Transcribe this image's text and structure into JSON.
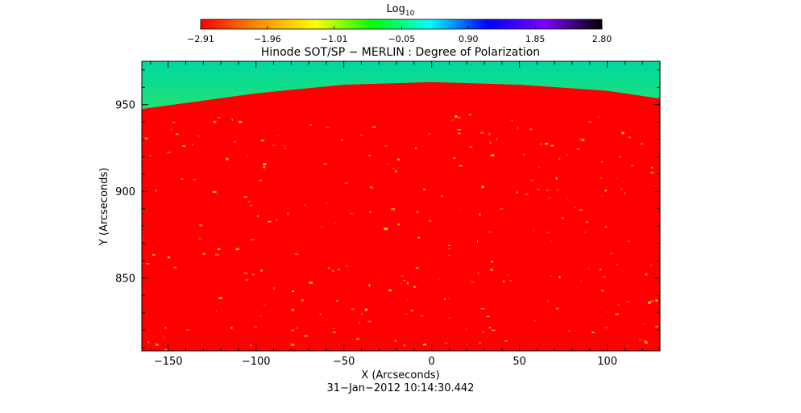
{
  "chart_data": {
    "type": "heatmap",
    "title": "Hinode SOT/SP − MERLIN : Degree of Polarization",
    "xlabel": "X (Arcseconds)",
    "ylabel": "Y (Arcseconds)",
    "timestamp": "31−Jan−2012 10:14:30.442",
    "xlim": [
      -165,
      130
    ],
    "ylim": [
      808,
      975
    ],
    "x_ticks": [
      -150,
      -100,
      -50,
      0,
      50,
      100
    ],
    "x_tick_labels": [
      "−150",
      "−100",
      "−50",
      "0",
      "50",
      "100"
    ],
    "y_ticks": [
      850,
      900,
      950
    ],
    "y_tick_labels": [
      "850",
      "900",
      "950"
    ],
    "colorbar": {
      "label_main": "Log",
      "label_sub": "10",
      "range": [
        -2.91,
        2.8
      ],
      "ticks": [
        -2.91,
        -1.96,
        -1.01,
        -0.05,
        0.9,
        1.85,
        2.8
      ],
      "tick_labels": [
        "−2.91",
        "−1.96",
        "−1.01",
        "−0.05",
        "0.90",
        "1.85",
        "2.80"
      ],
      "colormap": [
        "#ff0000",
        "#ff8c00",
        "#ffff00",
        "#00ff00",
        "#00ffff",
        "#0000ff",
        "#7f00ff",
        "#000000"
      ],
      "placement": "top"
    },
    "limb": {
      "x": [
        -165,
        -100,
        -50,
        0,
        50,
        100,
        130
      ],
      "y": [
        947.5,
        956.5,
        961.5,
        963,
        961.5,
        958,
        953.5
      ]
    },
    "above_limb_value_range": [
      -1.2,
      -0.5
    ],
    "disk_value_approx": -2.91,
    "grid": false
  }
}
